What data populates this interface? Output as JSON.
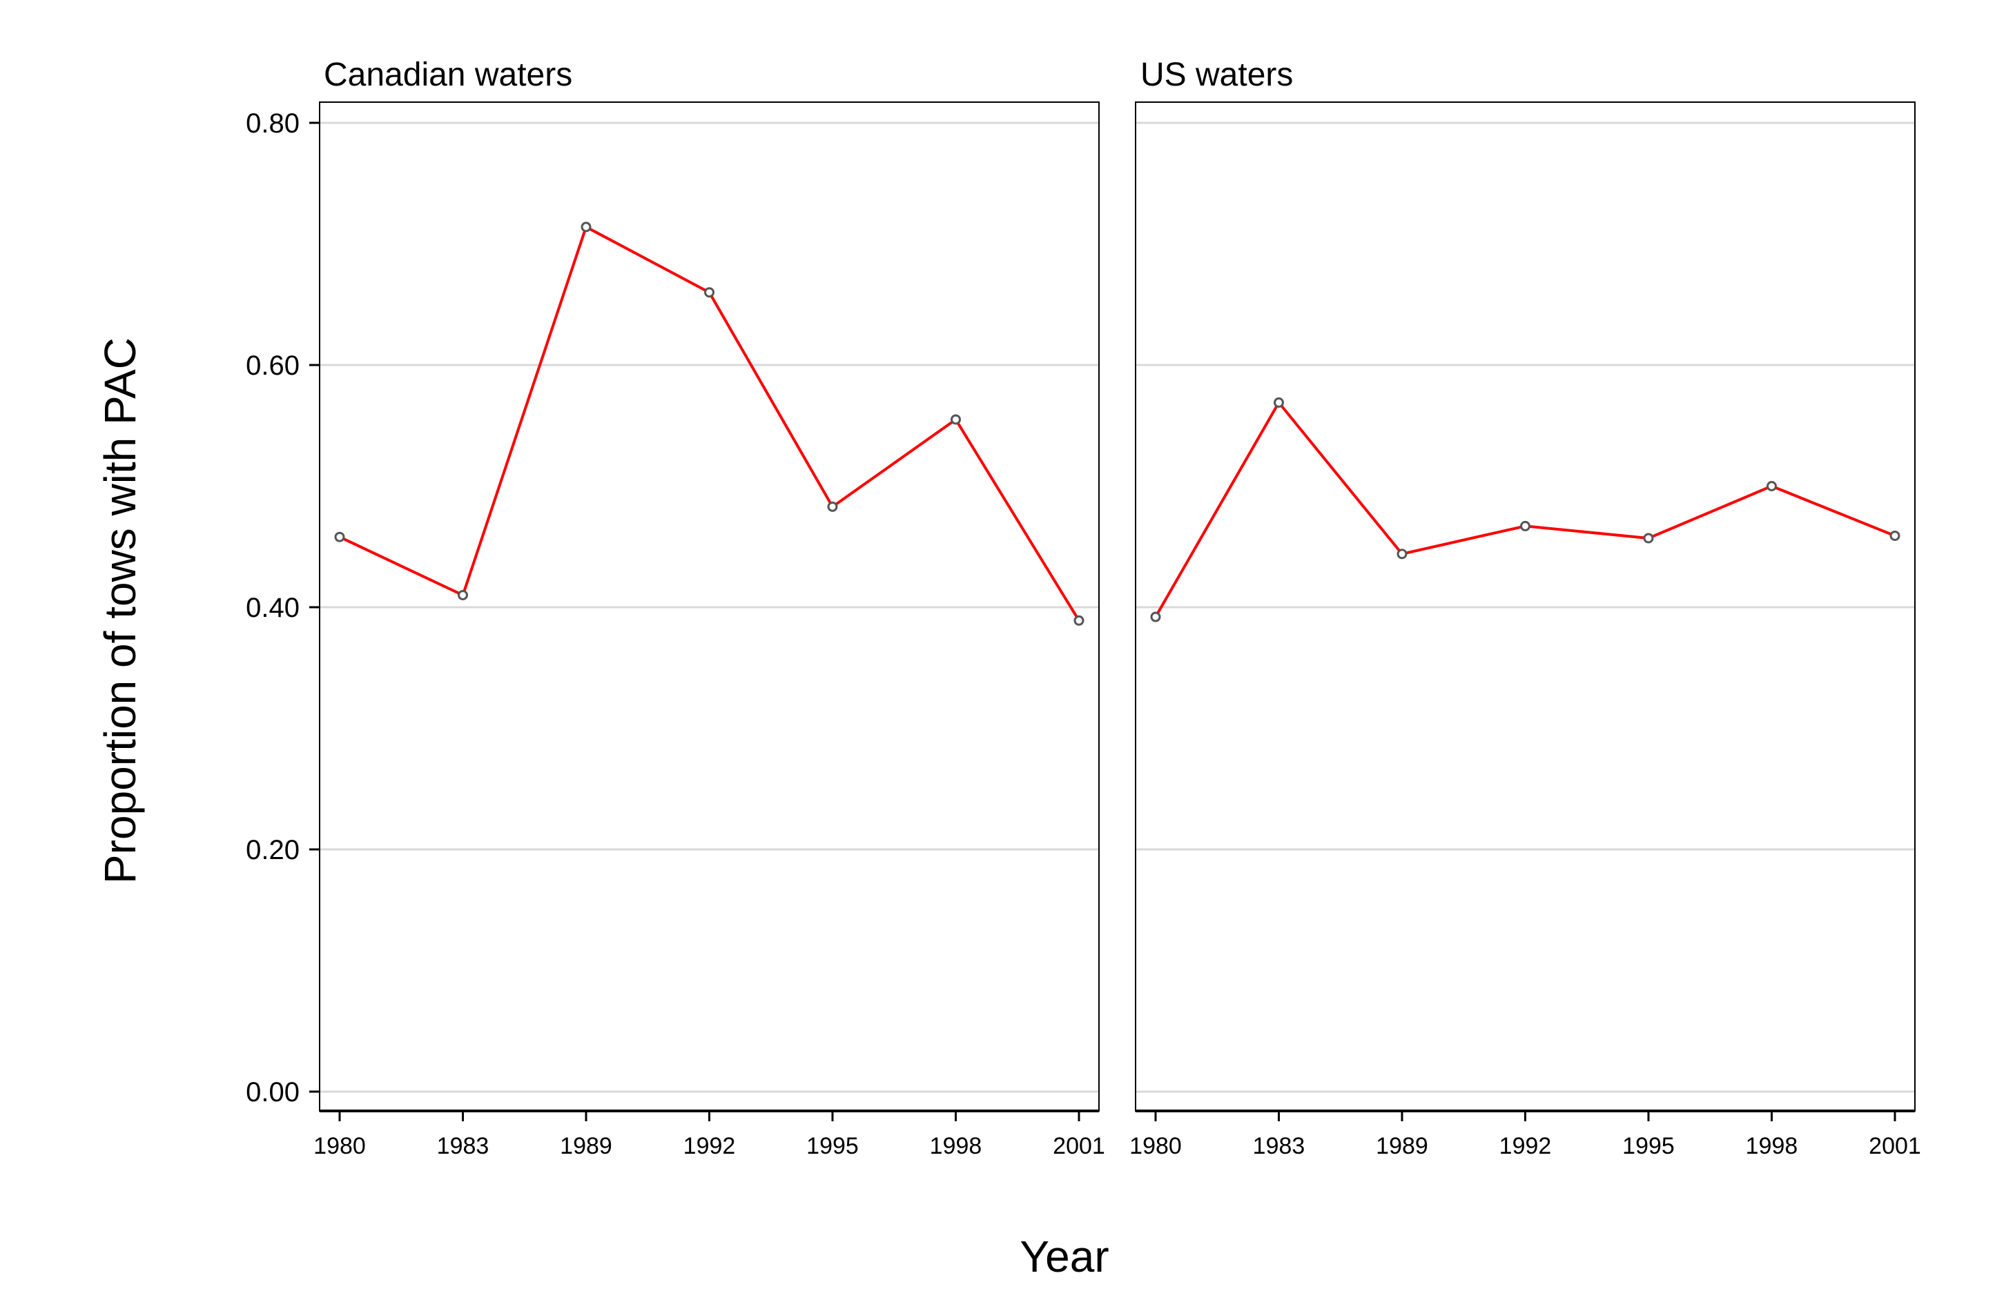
{
  "chart_data": {
    "type": "line",
    "ylabel": "Proportion of tows with PAC",
    "xlabel": "Year",
    "ylim": [
      0,
      0.8
    ],
    "yticks": [
      0.0,
      0.2,
      0.4,
      0.6,
      0.8
    ],
    "ytick_labels": [
      "0.00",
      "0.20",
      "0.40",
      "0.60",
      "0.80"
    ],
    "grid": true,
    "line_color": "#ff0000",
    "marker_color": "#555555",
    "categories": [
      "1980",
      "1983",
      "1989",
      "1992",
      "1995",
      "1998",
      "2001"
    ],
    "panels": [
      {
        "title": "Canadian waters",
        "values": [
          0.458,
          0.41,
          0.714,
          0.66,
          0.483,
          0.555,
          0.389
        ]
      },
      {
        "title": "US waters",
        "values": [
          0.392,
          0.569,
          0.444,
          0.467,
          0.457,
          0.5,
          0.459
        ]
      }
    ]
  }
}
